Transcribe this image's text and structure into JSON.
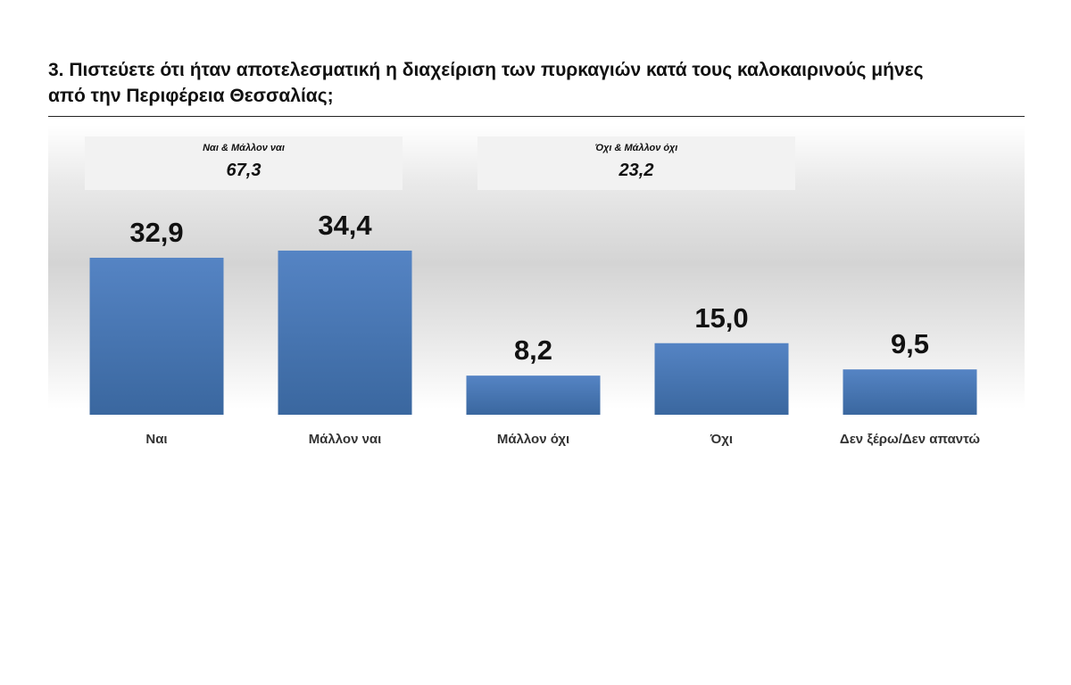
{
  "page": {
    "title": "3. Πιστεύετε ότι ήταν αποτελεσματική η  διαχείριση των πυρκαγιών κατά τους καλοκαιρινούς μήνες  από την Περιφέρεια Θεσσαλίας;"
  },
  "groups": [
    {
      "label": "Ναι & Μάλλον ναι",
      "value": "67,3"
    },
    {
      "label": "Όχι & Μάλλον όχι",
      "value": "23,2"
    }
  ],
  "chart_data": {
    "type": "bar",
    "categories": [
      "Ναι",
      "Μάλλον ναι",
      "Μάλλον όχι",
      "Όχι",
      "Δεν ξέρω/Δεν απαντώ"
    ],
    "values": [
      32.9,
      34.4,
      8.2,
      15.0,
      9.5
    ],
    "value_labels": [
      "32,9",
      "34,4",
      "8,2",
      "15,0",
      "9,5"
    ],
    "ylim": [
      0,
      40
    ],
    "grid": false,
    "colors": {
      "bar_top": "#5584c4",
      "bar_bottom": "#3a679f"
    }
  }
}
